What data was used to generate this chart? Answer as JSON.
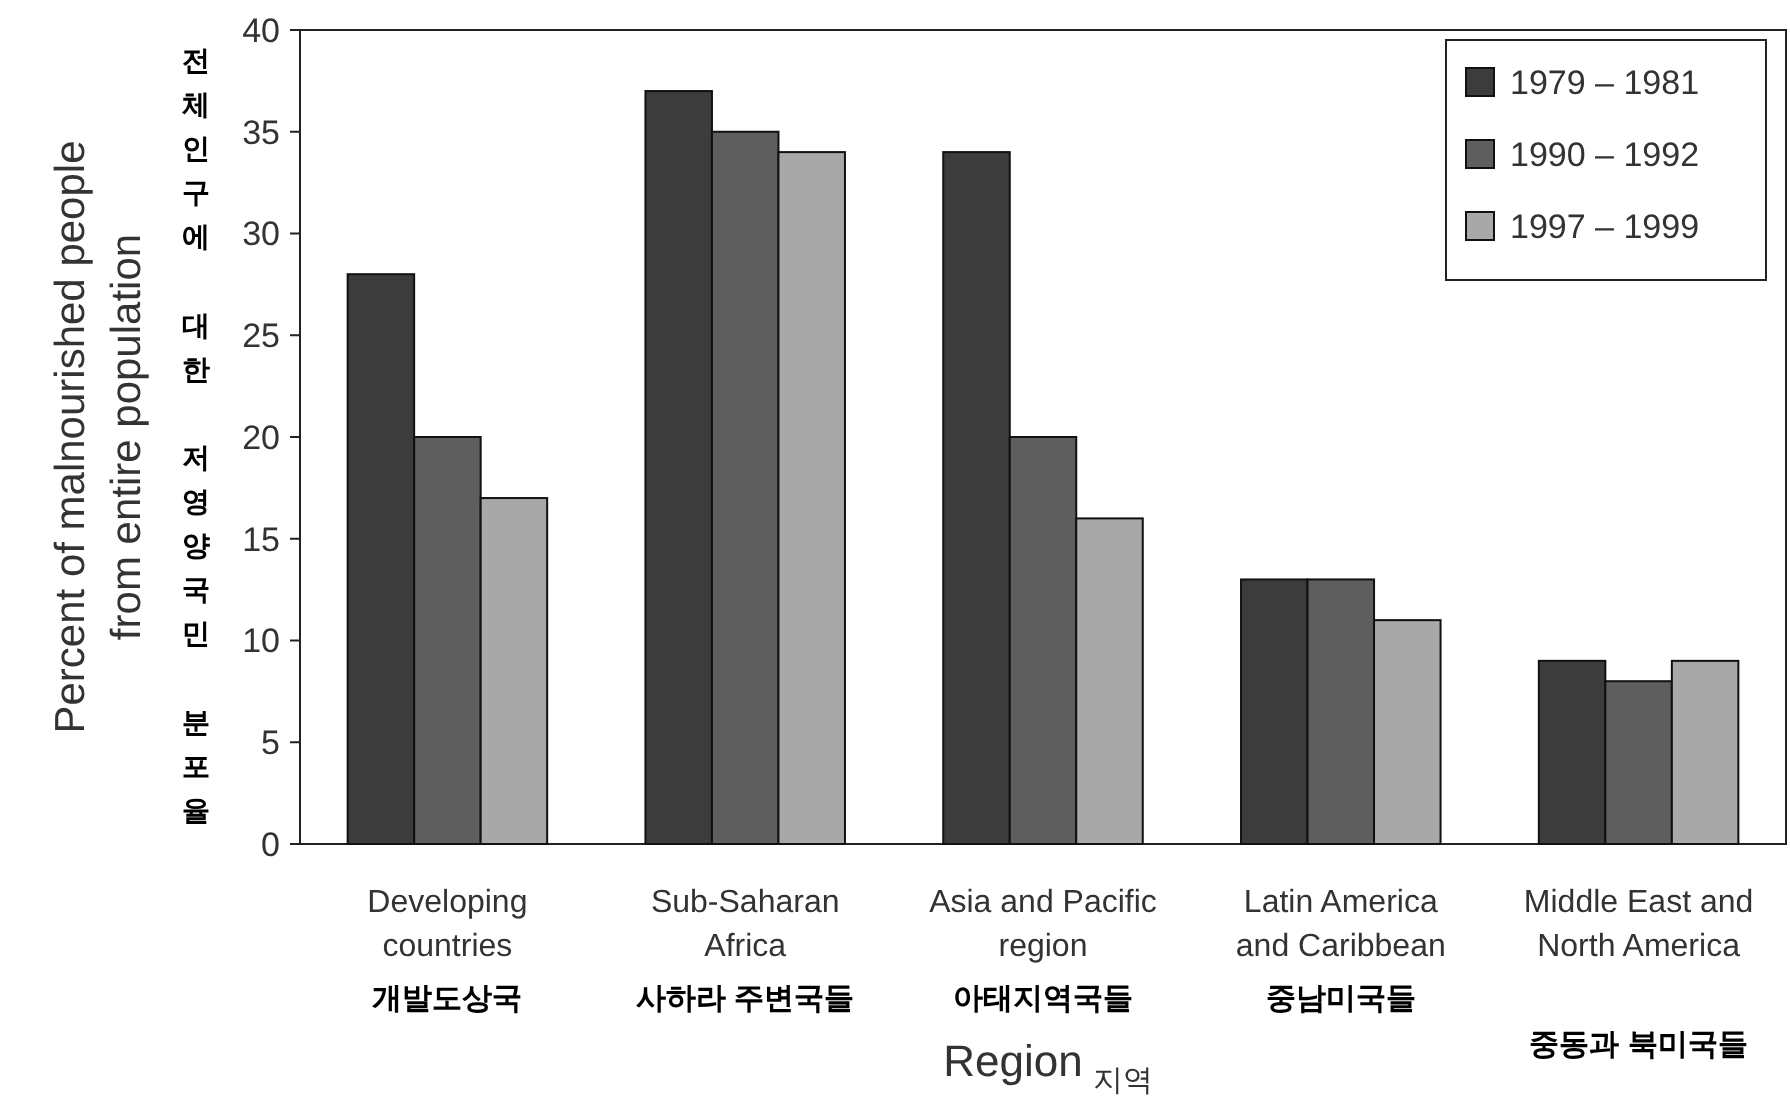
{
  "chart_data": {
    "type": "bar",
    "xlabel": "Region",
    "ylabel": "Percent of malnourished people\nfrom entire population",
    "categories": [
      "Developing countries",
      "Sub-Saharan Africa",
      "Asia and Pacific region",
      "Latin America and Caribbean",
      "Middle East and North America"
    ],
    "series": [
      {
        "name": "1979 – 1981",
        "color": "#3c3c3c",
        "values": [
          28,
          37,
          34,
          13,
          9
        ]
      },
      {
        "name": "1990 – 1992",
        "color": "#5e5e5e",
        "values": [
          20,
          35,
          20,
          13,
          8
        ]
      },
      {
        "name": "1997 – 1999",
        "color": "#a8a8a8",
        "values": [
          17,
          34,
          16,
          11,
          9
        ]
      }
    ],
    "ylim": [
      0,
      40
    ],
    "yticks": [
      0,
      5,
      10,
      15,
      20,
      25,
      30,
      35,
      40
    ],
    "grid": false,
    "legend": "top right",
    "annotations": [
      "전체인구에 대한 저영양국민 분포율",
      "개발도상국",
      "사하라 주변국들",
      "아태지역국들",
      "중남미국들",
      "중동과 북미국들",
      "지역"
    ]
  }
}
